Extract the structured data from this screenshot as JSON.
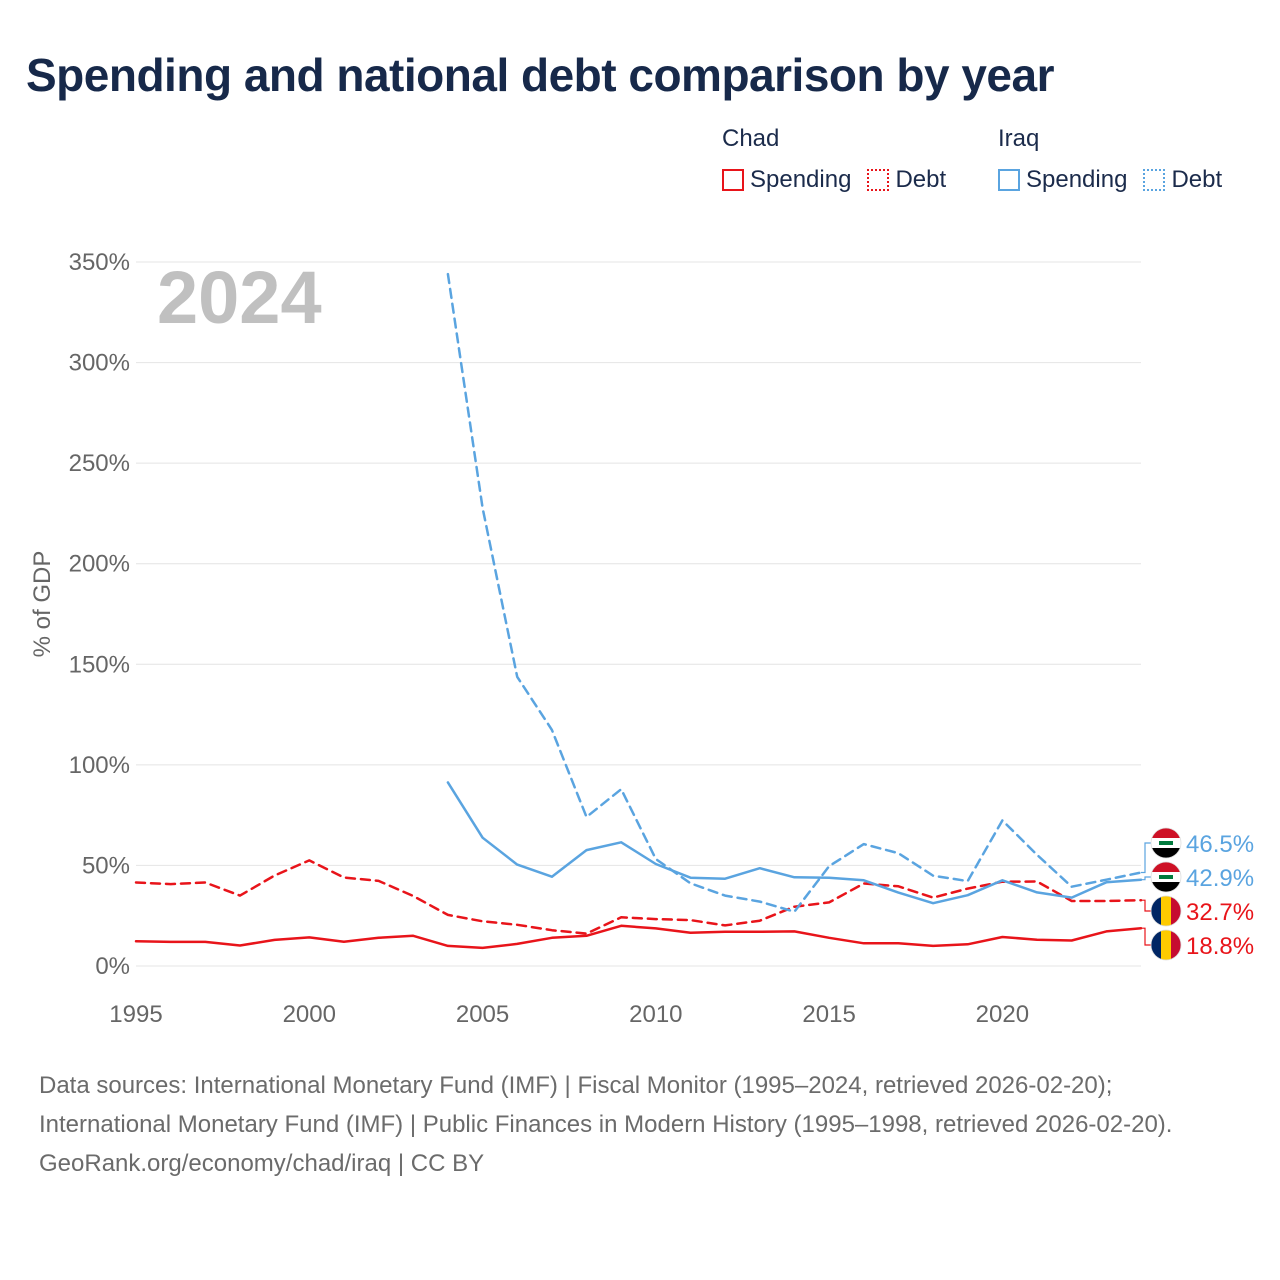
{
  "title": "Spending and national debt comparison by year",
  "legend": [
    {
      "country": "Chad",
      "items": [
        {
          "label": "Spending",
          "color": "#e8141a",
          "style": "solid"
        },
        {
          "label": "Debt",
          "color": "#e8141a",
          "style": "dotted"
        }
      ]
    },
    {
      "country": "Iraq",
      "items": [
        {
          "label": "Spending",
          "color": "#5aa4e0",
          "style": "solid"
        },
        {
          "label": "Debt",
          "color": "#5aa4e0",
          "style": "dotted"
        }
      ]
    }
  ],
  "chart_data": {
    "type": "line",
    "year_label": "2024",
    "ylabel": "% of GDP",
    "xlabel": "",
    "xlim": [
      1995,
      2024
    ],
    "ylim": [
      0,
      350
    ],
    "yticks": [
      0,
      50,
      100,
      150,
      200,
      250,
      300,
      350
    ],
    "ytick_labels": [
      "0%",
      "50%",
      "100%",
      "150%",
      "200%",
      "250%",
      "300%",
      "350%"
    ],
    "xticks": [
      1995,
      2000,
      2005,
      2010,
      2015,
      2020
    ],
    "xtick_labels": [
      "1995",
      "2000",
      "2005",
      "2010",
      "2015",
      "2020"
    ],
    "series": [
      {
        "name": "Chad Spending",
        "color": "#e8141a",
        "dash": "solid",
        "x": [
          1995,
          1996,
          1997,
          1998,
          1999,
          2000,
          2001,
          2002,
          2003,
          2004,
          2005,
          2006,
          2007,
          2008,
          2009,
          2010,
          2011,
          2012,
          2013,
          2014,
          2015,
          2016,
          2017,
          2018,
          2019,
          2020,
          2021,
          2022,
          2023,
          2024
        ],
        "values": [
          12.3,
          12.0,
          12.0,
          10.2,
          13.0,
          14.2,
          12.1,
          14.0,
          15.0,
          10.0,
          9.0,
          11.0,
          14.0,
          15.0,
          20.0,
          18.7,
          16.5,
          17.0,
          17.0,
          17.2,
          14.0,
          11.3,
          11.3,
          10.0,
          10.8,
          14.4,
          13.1,
          12.7,
          17.2,
          18.8
        ]
      },
      {
        "name": "Chad Debt",
        "color": "#e8141a",
        "dash": "dashed",
        "x": [
          1995,
          1996,
          1997,
          1998,
          1999,
          2000,
          2001,
          2002,
          2003,
          2004,
          2005,
          2006,
          2007,
          2008,
          2009,
          2010,
          2011,
          2012,
          2013,
          2014,
          2015,
          2016,
          2017,
          2018,
          2019,
          2020,
          2021,
          2022,
          2023,
          2024
        ],
        "values": [
          41.5,
          40.7,
          41.5,
          35.0,
          45.0,
          52.5,
          44.0,
          42.3,
          34.8,
          25.4,
          22.2,
          20.5,
          17.8,
          16.1,
          24.2,
          23.3,
          22.8,
          20.2,
          22.5,
          29.5,
          31.6,
          41.0,
          39.6,
          34.0,
          38.5,
          41.9,
          42.0,
          32.3,
          32.3,
          32.7
        ]
      },
      {
        "name": "Iraq Spending",
        "color": "#5aa4e0",
        "dash": "solid",
        "x": [
          2004,
          2005,
          2006,
          2007,
          2008,
          2009,
          2010,
          2011,
          2012,
          2013,
          2014,
          2015,
          2016,
          2017,
          2018,
          2019,
          2020,
          2021,
          2022,
          2023,
          2024
        ],
        "values": [
          91.3,
          63.8,
          50.4,
          44.4,
          57.6,
          61.5,
          50.7,
          43.9,
          43.4,
          48.6,
          44.1,
          43.9,
          42.6,
          36.5,
          31.2,
          35.2,
          42.6,
          36.6,
          34.0,
          41.6,
          42.9
        ]
      },
      {
        "name": "Iraq Debt",
        "color": "#5aa4e0",
        "dash": "dashed",
        "x": [
          2004,
          2005,
          2006,
          2007,
          2008,
          2009,
          2010,
          2011,
          2012,
          2013,
          2014,
          2015,
          2016,
          2017,
          2018,
          2019,
          2020,
          2021,
          2022,
          2023,
          2024
        ],
        "values": [
          344.0,
          227.7,
          143.8,
          117.4,
          74.1,
          87.9,
          53.2,
          41.1,
          35.0,
          32.0,
          27.0,
          49.6,
          60.6,
          56.1,
          44.9,
          42.2,
          72.4,
          55.3,
          39.4,
          42.9,
          46.5
        ]
      }
    ],
    "end_labels": [
      {
        "text": "46.5%",
        "value": 46.5,
        "color": "#5aa4e0",
        "flag": "iraq"
      },
      {
        "text": "42.9%",
        "value": 42.9,
        "color": "#5aa4e0",
        "flag": "iraq"
      },
      {
        "text": "32.7%",
        "value": 32.7,
        "color": "#e8141a",
        "flag": "chad"
      },
      {
        "text": "18.8%",
        "value": 18.8,
        "color": "#e8141a",
        "flag": "chad"
      }
    ],
    "colors": {
      "grid": "#e4e4e4",
      "axis_text": "#666666",
      "year_watermark": "#c0c0c0"
    }
  },
  "footer": {
    "sources": "Data sources: International Monetary Fund (IMF) | Fiscal Monitor (1995–2024, retrieved 2026-02-20); International Monetary Fund (IMF) | Public Finances in Modern History (1995–1998, retrieved 2026-02-20).",
    "attribution": "GeoRank.org/economy/chad/iraq | CC BY"
  }
}
